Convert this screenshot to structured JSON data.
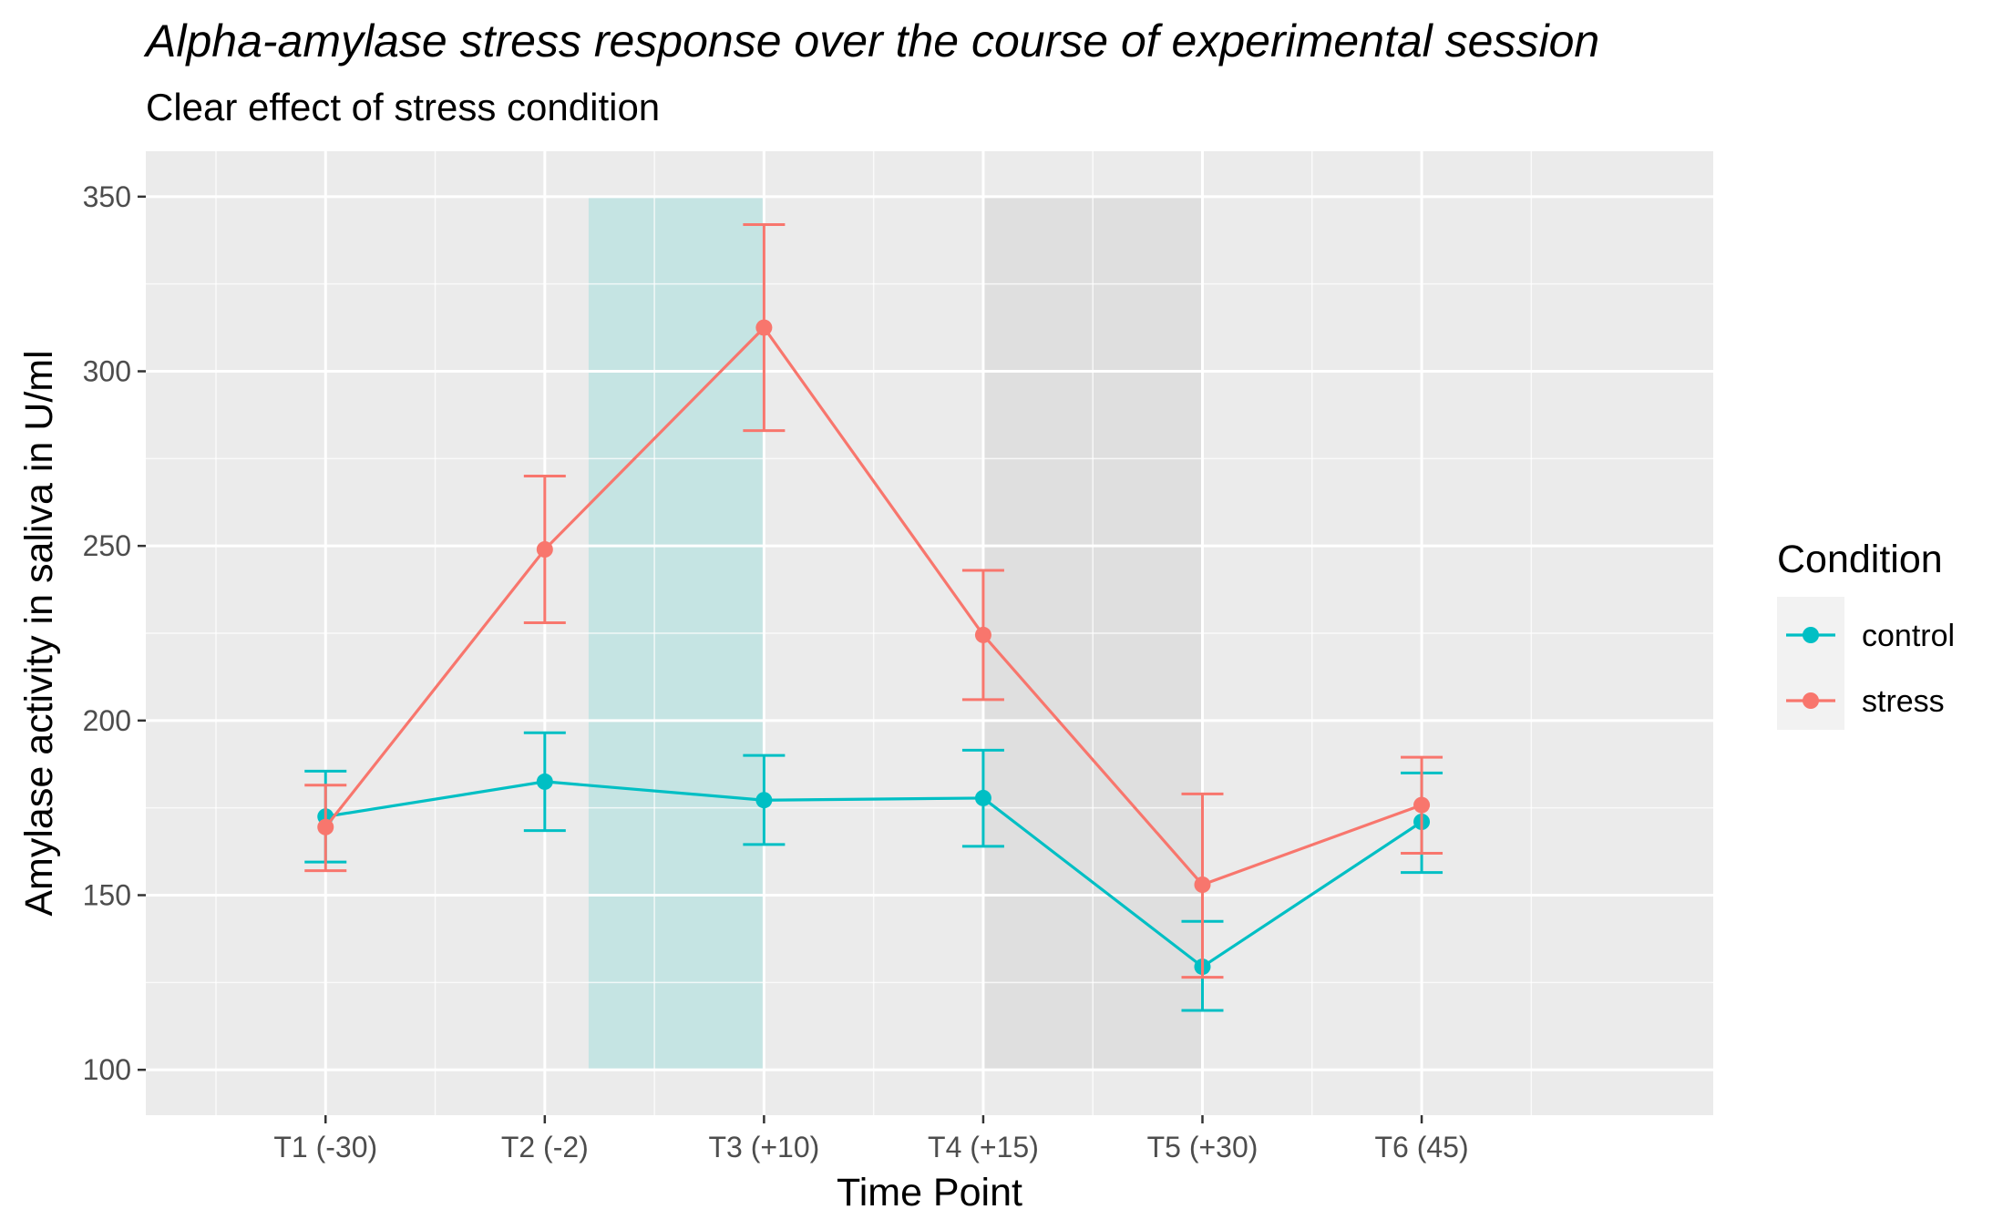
{
  "chart_data": {
    "type": "line",
    "title": "Alpha-amylase stress response over the course of experimental session",
    "subtitle": "Clear effect of stress condition",
    "xlabel": "Time Point",
    "ylabel": "Amylase activity in saliva in U/ml",
    "categories": [
      "T1 (-30)",
      "T2 (-2)",
      "T3 (+10)",
      "T4 (+15)",
      "T5 (+30)",
      "T6 (45)"
    ],
    "ylim": [
      87,
      363
    ],
    "yticks": [
      100,
      150,
      200,
      250,
      300,
      350
    ],
    "grid": true,
    "legend": {
      "title": "Condition",
      "position": "right",
      "entries": [
        "control",
        "stress"
      ]
    },
    "shaded_regions": [
      {
        "from_category": 1.2,
        "to_category": 2,
        "y_from": 100,
        "y_to": 350,
        "color": "#7fd8d4"
      },
      {
        "from_category": 3,
        "to_category": 4,
        "y_from": 100,
        "y_to": 350,
        "color": "#d6d6d6"
      }
    ],
    "series": [
      {
        "name": "control",
        "color": "#00bfc4",
        "values": [
          172.5,
          182.5,
          177.2,
          177.8,
          129.5,
          171.0
        ],
        "err_low": [
          159.5,
          168.5,
          164.5,
          164.0,
          117.0,
          156.5
        ],
        "err_high": [
          185.5,
          196.5,
          190.0,
          191.5,
          142.5,
          185.0
        ]
      },
      {
        "name": "stress",
        "color": "#f8766d",
        "values": [
          169.5,
          249.0,
          312.5,
          224.5,
          153.0,
          175.8
        ],
        "err_low": [
          157.0,
          228.0,
          283.0,
          206.0,
          126.5,
          162.0
        ],
        "err_high": [
          181.5,
          270.0,
          342.0,
          243.0,
          179.0,
          189.5
        ]
      }
    ]
  }
}
